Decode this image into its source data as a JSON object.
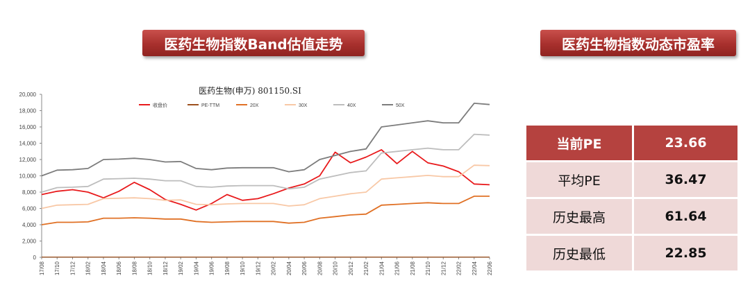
{
  "left_banner": "医药生物指数Band估值走势",
  "right_banner": "医药生物指数动态市盈率",
  "pe_table": [
    {
      "label": "当前PE",
      "value": "23.66"
    },
    {
      "label": "平均PE",
      "value": "36.47"
    },
    {
      "label": "历史最高",
      "value": "61.64"
    },
    {
      "label": "历史最低",
      "value": "22.85"
    }
  ],
  "chart_data": {
    "type": "line",
    "title": "医药生物(申万) 801150.SI",
    "ylim": [
      0,
      20000
    ],
    "yticks": [
      "0",
      "2,000",
      "4,000",
      "6,000",
      "8,000",
      "10,000",
      "12,000",
      "14,000",
      "16,000",
      "18,000",
      "20,000"
    ],
    "xticks": [
      "17/08",
      "17/10",
      "17/12",
      "18/02",
      "18/04",
      "18/06",
      "18/08",
      "18/10",
      "18/12",
      "19/02",
      "19/04",
      "19/06",
      "19/08",
      "19/10",
      "19/12",
      "20/02",
      "20/04",
      "20/06",
      "20/08",
      "20/10",
      "20/12",
      "21/02",
      "21/04",
      "21/06",
      "21/08",
      "21/10",
      "21/12",
      "22/02",
      "22/04",
      "22/06"
    ],
    "legend_position": "top",
    "colors": {
      "close": "#e8191b",
      "pe": "#9c4f1c",
      "b20": "#e07024",
      "b30": "#f8c8a6",
      "b40": "#bdbdbd",
      "b50": "#7c7c7c"
    },
    "series": [
      {
        "name": "收盘价",
        "key": "close",
        "values": [
          7700,
          8100,
          8300,
          8000,
          7300,
          8100,
          9200,
          8300,
          7100,
          6500,
          5800,
          6600,
          7700,
          7000,
          7200,
          7800,
          8500,
          9000,
          10000,
          12900,
          11600,
          12300,
          13200,
          11500,
          13000,
          11600,
          11200,
          10500,
          9000,
          8900
        ]
      },
      {
        "name": "PE-TTM",
        "key": "pe",
        "values": [
          30,
          30,
          30,
          30,
          30,
          30,
          30,
          30,
          30,
          30,
          30,
          30,
          30,
          30,
          30,
          30,
          30,
          30,
          30,
          30,
          30,
          30,
          30,
          30,
          30,
          30,
          30,
          30,
          30,
          30
        ]
      },
      {
        "name": "20X",
        "key": "b20",
        "values": [
          4000,
          4300,
          4300,
          4350,
          4800,
          4800,
          4850,
          4800,
          4700,
          4700,
          4400,
          4300,
          4350,
          4400,
          4400,
          4400,
          4200,
          4300,
          4800,
          5000,
          5200,
          5300,
          6400,
          6500,
          6600,
          6700,
          6600,
          6600,
          7500,
          7500
        ]
      },
      {
        "name": "30X",
        "key": "b30",
        "values": [
          6000,
          6400,
          6450,
          6500,
          7200,
          7250,
          7300,
          7200,
          7000,
          7050,
          6500,
          6450,
          6550,
          6600,
          6600,
          6600,
          6300,
          6450,
          7200,
          7500,
          7800,
          8000,
          9600,
          9750,
          9900,
          10050,
          9900,
          9900,
          11300,
          11250
        ]
      },
      {
        "name": "40X",
        "key": "b40",
        "values": [
          8000,
          8550,
          8600,
          8700,
          9600,
          9650,
          9700,
          9600,
          9400,
          9400,
          8700,
          8600,
          8750,
          8800,
          8800,
          8800,
          8400,
          8600,
          9600,
          10000,
          10400,
          10600,
          12800,
          13000,
          13200,
          13400,
          13200,
          13200,
          15100,
          15000
        ]
      },
      {
        "name": "50X",
        "key": "b50",
        "values": [
          10000,
          10700,
          10750,
          10900,
          12000,
          12050,
          12150,
          12000,
          11700,
          11750,
          10900,
          10750,
          10950,
          11000,
          11000,
          11000,
          10500,
          10750,
          12000,
          12500,
          13000,
          13300,
          16000,
          16250,
          16500,
          16750,
          16500,
          16500,
          18900,
          18750
        ]
      }
    ]
  }
}
